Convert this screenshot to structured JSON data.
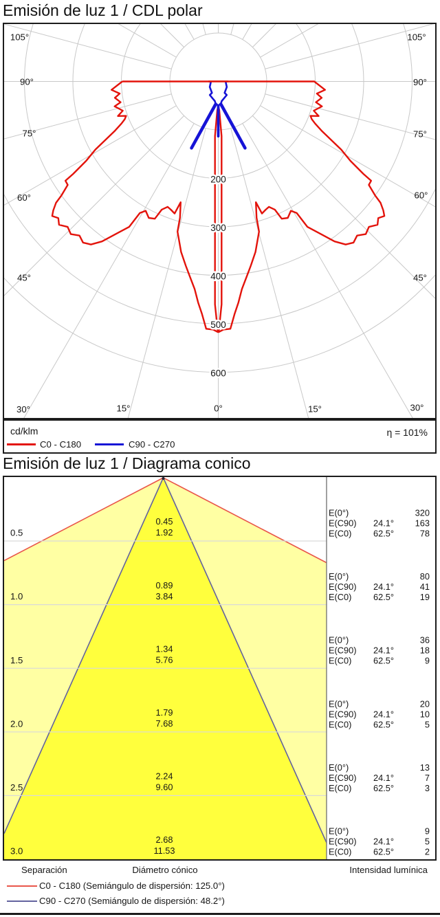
{
  "polar_section": {
    "title": "Emisión de luz 1 / CDL polar",
    "unit_label": "cd/klm",
    "efficiency": "η = 101%",
    "legend": [
      {
        "label": "C0 - C180",
        "color": "#e3130b"
      },
      {
        "label": "C90 - C270",
        "color": "#1613d6"
      }
    ]
  },
  "cone_section": {
    "title": "Emisión de luz 1 / Diagrama conico",
    "footer": {
      "separation": "Separación",
      "diameter": "Diámetro cónico",
      "intensity": "Intensidad lumínica",
      "legend": [
        {
          "label": "C0 - C180 (Semiángulo de dispersión: 125.0°)",
          "color": "#e9564a"
        },
        {
          "label": "C90 - C270 (Semiángulo de dispersión: 48.2°)",
          "color": "#62629e"
        }
      ]
    }
  },
  "chart_data": [
    {
      "type": "polar-intensity-curve",
      "title": "Emisión de luz 1 / CDL polar",
      "unit": "cd/klm",
      "efficiency_percent": 101,
      "grid": {
        "ray_step_deg": 15,
        "ring_step": 100,
        "max_ring": 600,
        "grid_color": "#c8c8c8"
      },
      "radial_rings": [
        100,
        200,
        300,
        400,
        500,
        600
      ],
      "radial_ring_labels": [
        "200",
        "300",
        "400",
        "500",
        "600"
      ],
      "angle_labels": [
        "105°",
        "90°",
        "75°",
        "60°",
        "45°",
        "30°",
        "15°",
        "0°"
      ],
      "series": [
        {
          "name": "C0 - C180",
          "color": "#e3130b",
          "points": [
            [
              -90,
              198
            ],
            [
              -90,
              2
            ],
            [
              90,
              2
            ],
            [
              90,
              198
            ],
            [
              85.5,
              221
            ],
            [
              83,
              205
            ],
            [
              81,
              216
            ],
            [
              78,
              206
            ],
            [
              76.5,
              220
            ],
            [
              73,
              206
            ],
            [
              71,
              219
            ],
            [
              69.5,
              203
            ],
            [
              68,
              208
            ],
            [
              66.5,
              218
            ],
            [
              64.5,
              236
            ],
            [
              61,
              290
            ],
            [
              59,
              318
            ],
            [
              57.5,
              355
            ],
            [
              57,
              376
            ],
            [
              55.5,
              377
            ],
            [
              54,
              400
            ],
            [
              53.2,
              418
            ],
            [
              52,
              432
            ],
            [
              51,
              441
            ],
            [
              49.5,
              434
            ],
            [
              48,
              442
            ],
            [
              46,
              432
            ],
            [
              44,
              438
            ],
            [
              42,
              428
            ],
            [
              40,
              434
            ],
            [
              38,
              427
            ],
            [
              36,
              408
            ],
            [
              33.7,
              377
            ],
            [
              31.5,
              352
            ],
            [
              30.8,
              316
            ],
            [
              29.3,
              306
            ],
            [
              27,
              316
            ],
            [
              24.8,
              312
            ],
            [
              23.8,
              289
            ],
            [
              22,
              279
            ],
            [
              20.3,
              282
            ],
            [
              18.3,
              287
            ],
            [
              17.3,
              261
            ],
            [
              15.7,
              292
            ],
            [
              15.2,
              321
            ],
            [
              14,
              336
            ],
            [
              12.3,
              360
            ],
            [
              10,
              386
            ],
            [
              8.2,
              408
            ],
            [
              6.5,
              431
            ],
            [
              5.2,
              458
            ],
            [
              4,
              481
            ],
            [
              2.8,
              511
            ],
            [
              1.2,
              512
            ],
            [
              0.1,
              517
            ],
            [
              0.85,
              460
            ],
            [
              1.22,
              320
            ],
            [
              1.95,
              200
            ],
            [
              3.45,
              113
            ],
            [
              2,
              60
            ],
            [
              0,
              50
            ],
            [
              -2,
              60
            ],
            [
              -3.45,
              113
            ],
            [
              -1.95,
              200
            ],
            [
              -1.22,
              320
            ],
            [
              -0.85,
              460
            ],
            [
              -0.1,
              517
            ],
            [
              -1.2,
              512
            ],
            [
              -2.8,
              511
            ],
            [
              -4,
              481
            ],
            [
              -5.2,
              458
            ],
            [
              -6.5,
              431
            ],
            [
              -8.2,
              408
            ],
            [
              -10,
              386
            ],
            [
              -12.3,
              360
            ],
            [
              -14,
              336
            ],
            [
              -15.2,
              321
            ],
            [
              -15.7,
              292
            ],
            [
              -17.3,
              261
            ],
            [
              -18.3,
              287
            ],
            [
              -20.3,
              282
            ],
            [
              -22,
              279
            ],
            [
              -23.8,
              289
            ],
            [
              -24.8,
              312
            ],
            [
              -27,
              316
            ],
            [
              -29.3,
              306
            ],
            [
              -30.8,
              316
            ],
            [
              -31.5,
              352
            ],
            [
              -33.7,
              377
            ],
            [
              -36,
              408
            ],
            [
              -38,
              427
            ],
            [
              -40,
              434
            ],
            [
              -42,
              428
            ],
            [
              -44,
              438
            ],
            [
              -46,
              432
            ],
            [
              -48,
              442
            ],
            [
              -49.5,
              434
            ],
            [
              -51,
              441
            ],
            [
              -52,
              432
            ],
            [
              -53.2,
              418
            ],
            [
              -54,
              400
            ],
            [
              -55.5,
              377
            ],
            [
              -57,
              376
            ],
            [
              -57.5,
              355
            ],
            [
              -59,
              318
            ],
            [
              -61,
              290
            ],
            [
              -64.5,
              236
            ],
            [
              -66.5,
              218
            ],
            [
              -68,
              208
            ],
            [
              -69.5,
              203
            ],
            [
              -71,
              219
            ],
            [
              -73,
              206
            ],
            [
              -76.5,
              220
            ],
            [
              -78,
              206
            ],
            [
              -81,
              216
            ],
            [
              -83,
              205
            ],
            [
              -85.5,
              221
            ],
            [
              -90,
              198
            ]
          ]
        },
        {
          "name": "C90 - C270",
          "color": "#1613d6",
          "hat": [
            [
              -91,
              15
            ],
            [
              -57,
              21
            ],
            [
              -29,
              27
            ],
            [
              -32,
              33
            ],
            [
              -18,
              37
            ],
            [
              -10,
              41
            ],
            [
              -7.5,
              45
            ],
            [
              0,
              50
            ],
            [
              7.5,
              45
            ],
            [
              10,
              41
            ],
            [
              18,
              37
            ],
            [
              32,
              33
            ],
            [
              29,
              27
            ],
            [
              57,
              21
            ],
            [
              91,
              15
            ]
          ],
          "left_spike": [
            [
              -7,
              48
            ],
            [
              -21.9,
              148
            ]
          ],
          "right_spike": [
            [
              7,
              48
            ],
            [
              21.9,
              148
            ]
          ],
          "center_spike": [
            [
              0,
              50
            ],
            [
              0,
              113
            ]
          ]
        }
      ]
    },
    {
      "type": "cone-diagram",
      "title": "Emisión de luz 1 / Diagrama conico",
      "beam_semiangle_c90_deg": 24.1,
      "beam_semiangle_c0_deg": 62.5,
      "dispersion_semiangle_c0_deg": 125.0,
      "dispersion_semiangle_c90_deg": 48.2,
      "row_labels": [
        "E(0°)",
        "E(C90)",
        "E(C0)"
      ],
      "row_angle_labels": [
        "",
        "24.1°",
        "62.5°"
      ],
      "rows": [
        {
          "separation_m": "0.5",
          "diameter_c90": "0.45",
          "diameter_c0": "1.92",
          "E0": "320",
          "EC90": "163",
          "EC0": "78"
        },
        {
          "separation_m": "1.0",
          "diameter_c90": "0.89",
          "diameter_c0": "3.84",
          "E0": "80",
          "EC90": "41",
          "EC0": "19"
        },
        {
          "separation_m": "1.5",
          "diameter_c90": "1.34",
          "diameter_c0": "5.76",
          "E0": "36",
          "EC90": "18",
          "EC0": "9"
        },
        {
          "separation_m": "2.0",
          "diameter_c90": "1.79",
          "diameter_c0": "7.68",
          "E0": "20",
          "EC90": "10",
          "EC0": "5"
        },
        {
          "separation_m": "2.5",
          "diameter_c90": "2.24",
          "diameter_c0": "9.60",
          "E0": "13",
          "EC90": "7",
          "EC0": "3"
        },
        {
          "separation_m": "3.0",
          "diameter_c90": "2.68",
          "diameter_c0": "11.53",
          "E0": "9",
          "EC90": "5",
          "EC0": "2"
        }
      ],
      "colors": {
        "outer_fill": "#ffffa3",
        "inner_fill": "#ffff3d",
        "c0_line": "#e9564a",
        "c90_line": "#62629e",
        "sep_line": "#d9d9d9"
      }
    }
  ]
}
